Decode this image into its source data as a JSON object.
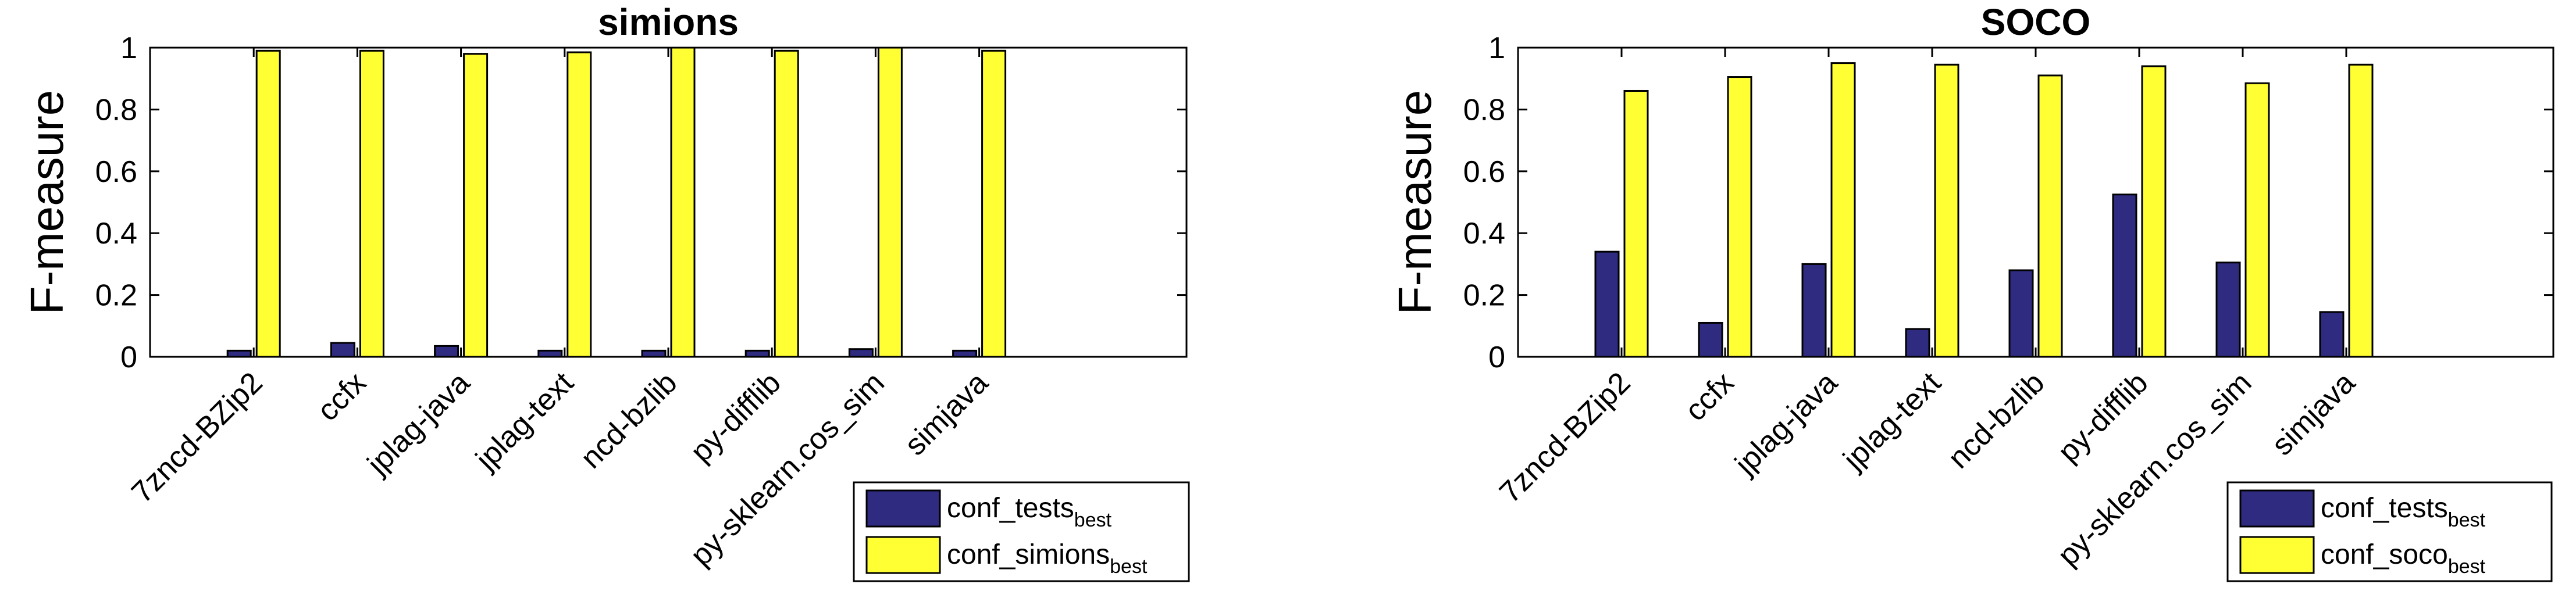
{
  "chart_data": [
    {
      "type": "bar",
      "title": "simions",
      "ylabel": "F-measure",
      "xlabel": "",
      "ylim": [
        0,
        1
      ],
      "yticks": [
        "0",
        "0.2",
        "0.4",
        "0.6",
        "0.8",
        "1"
      ],
      "grid": false,
      "legend_position": "bottom-right outside",
      "categories": [
        "7zncd-BZip2",
        "ccfx",
        "jplag-java",
        "jplag-text",
        "ncd-bzlib",
        "py-difflib",
        "py-sklearn.cos_sim",
        "simjava"
      ],
      "series": [
        {
          "name": "conf_tests",
          "name_sub": "best",
          "color": "#2e2b80",
          "values": [
            0.02,
            0.045,
            0.035,
            0.02,
            0.02,
            0.02,
            0.025,
            0.02
          ]
        },
        {
          "name": "conf_simions",
          "name_sub": "best",
          "color": "#ffff33",
          "values": [
            0.99,
            0.99,
            0.98,
            0.985,
            1.0,
            0.99,
            1.0,
            0.99
          ]
        }
      ]
    },
    {
      "type": "bar",
      "title": "SOCO",
      "ylabel": "F-measure",
      "xlabel": "",
      "ylim": [
        0,
        1
      ],
      "yticks": [
        "0",
        "0.2",
        "0.4",
        "0.6",
        "0.8",
        "1"
      ],
      "grid": false,
      "legend_position": "bottom-right outside",
      "categories": [
        "7zncd-BZip2",
        "ccfx",
        "jplag-java",
        "jplag-text",
        "ncd-bzlib",
        "py-difflib",
        "py-sklearn.cos_sim",
        "simjava"
      ],
      "series": [
        {
          "name": "conf_tests",
          "name_sub": "best",
          "color": "#2e2b80",
          "values": [
            0.34,
            0.11,
            0.3,
            0.09,
            0.28,
            0.525,
            0.305,
            0.145
          ]
        },
        {
          "name": "conf_soco",
          "name_sub": "best",
          "color": "#ffff33",
          "values": [
            0.86,
            0.905,
            0.95,
            0.945,
            0.91,
            0.94,
            0.885,
            0.945
          ]
        }
      ]
    }
  ]
}
